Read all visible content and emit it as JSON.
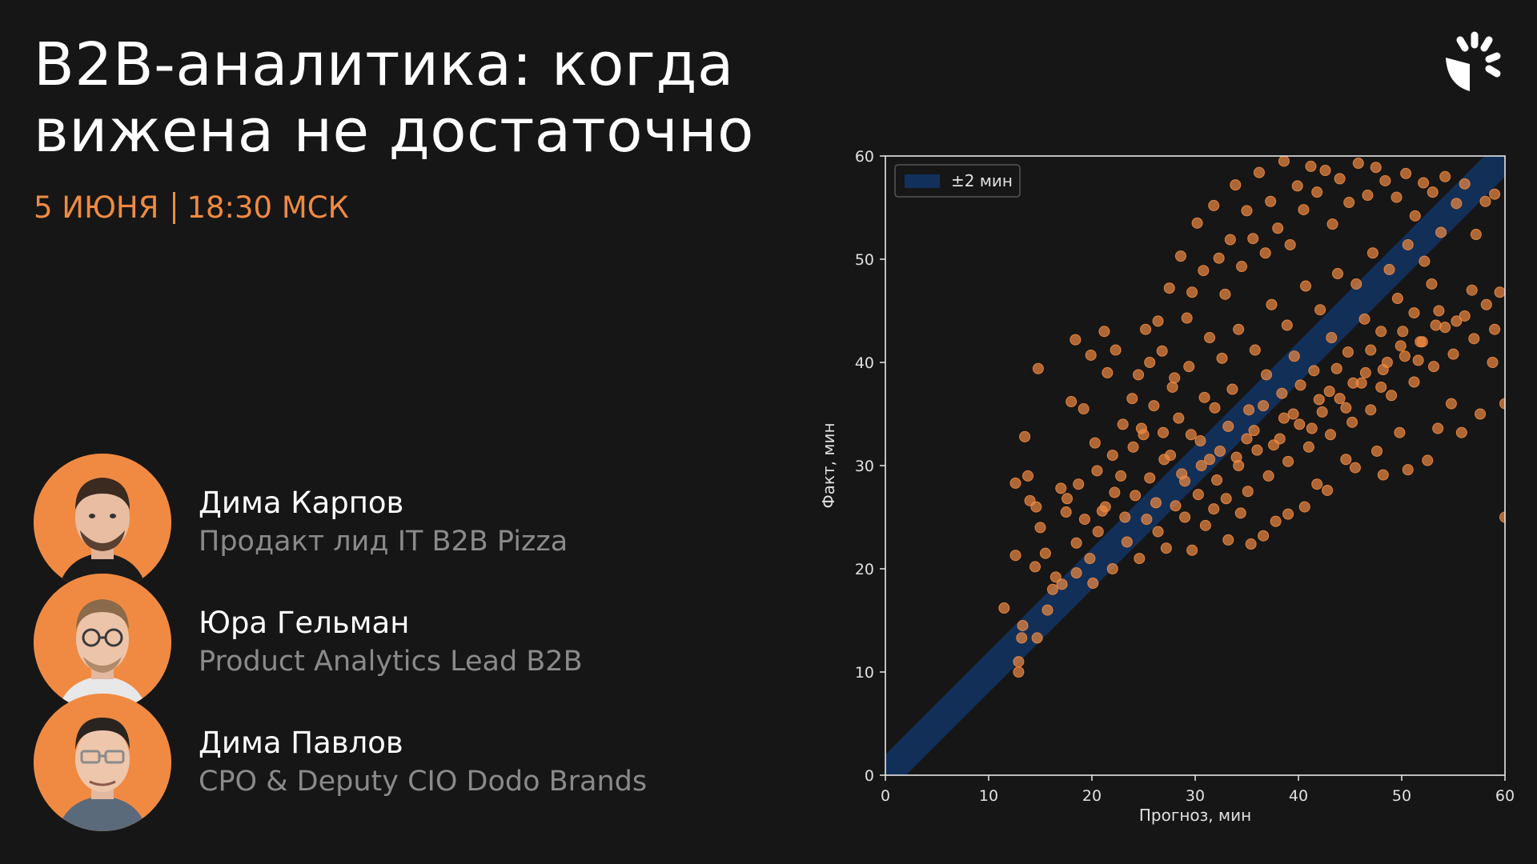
{
  "slide": {
    "title_line1": "B2B-аналитика: когда",
    "title_line2": "вижена не достаточно",
    "date": "5 ИЮНЯ",
    "time": "18:30 МСК"
  },
  "speakers": [
    {
      "name": "Дима Карпов",
      "role": "Продакт лид IT B2B Pizza"
    },
    {
      "name": "Юра Гельман",
      "role": "Product Analytics Lead B2B"
    },
    {
      "name": "Дима Павлов",
      "role": "CPO & Deputy CIO Dodo Brands"
    }
  ],
  "colors": {
    "accent": "#f08a42",
    "background": "#161616",
    "band": "#12305c",
    "muted": "#8a8a8a"
  },
  "chart_data": {
    "type": "scatter",
    "xlabel": "Прогноз, мин",
    "ylabel": "Факт, мин",
    "xlim": [
      0,
      60
    ],
    "ylim": [
      0,
      60
    ],
    "xticks": [
      0,
      10,
      20,
      30,
      40,
      50,
      60
    ],
    "yticks": [
      0,
      10,
      20,
      30,
      40,
      50,
      60
    ],
    "legend": {
      "label": "±2 мин",
      "position": "top-left"
    },
    "band": {
      "half_width": 2,
      "label": "±2 мин"
    },
    "series": [
      {
        "color": "#f08a42",
        "points": [
          [
            11.5,
            16.2
          ],
          [
            12.6,
            21.3
          ],
          [
            12.9,
            10.0
          ],
          [
            12.9,
            11.0
          ],
          [
            13.2,
            13.3
          ],
          [
            13.3,
            14.5
          ],
          [
            14.7,
            13.3
          ],
          [
            14.5,
            20.2
          ],
          [
            15.5,
            21.5
          ],
          [
            15.7,
            16.0
          ],
          [
            16.2,
            18.0
          ],
          [
            16.5,
            19.2
          ],
          [
            17.1,
            18.5
          ],
          [
            12.6,
            28.3
          ],
          [
            13.5,
            32.8
          ],
          [
            13.8,
            29.0
          ],
          [
            14.0,
            26.6
          ],
          [
            14.6,
            26.0
          ],
          [
            15.0,
            24.0
          ],
          [
            14.8,
            39.4
          ],
          [
            17.0,
            27.8
          ],
          [
            17.5,
            25.5
          ],
          [
            17.6,
            26.8
          ],
          [
            18.0,
            36.2
          ],
          [
            18.4,
            42.2
          ],
          [
            18.5,
            22.5
          ],
          [
            18.7,
            28.2
          ],
          [
            19.2,
            35.5
          ],
          [
            19.9,
            40.7
          ],
          [
            20.3,
            32.2
          ],
          [
            21.2,
            43.0
          ],
          [
            22.3,
            41.2
          ],
          [
            21.5,
            39.0
          ],
          [
            20.5,
            29.5
          ],
          [
            21.0,
            25.6
          ],
          [
            22.0,
            31.0
          ],
          [
            23.0,
            34.0
          ],
          [
            23.9,
            36.5
          ],
          [
            24.5,
            38.8
          ],
          [
            25.0,
            33.0
          ],
          [
            25.2,
            43.2
          ],
          [
            25.6,
            40.0
          ],
          [
            26.4,
            44.0
          ],
          [
            26.8,
            41.1
          ],
          [
            27.5,
            47.2
          ],
          [
            28.0,
            38.5
          ],
          [
            28.6,
            50.3
          ],
          [
            29.2,
            44.3
          ],
          [
            29.7,
            46.8
          ],
          [
            30.2,
            53.5
          ],
          [
            30.8,
            48.9
          ],
          [
            31.4,
            42.4
          ],
          [
            31.8,
            55.2
          ],
          [
            32.3,
            50.1
          ],
          [
            32.9,
            46.6
          ],
          [
            33.4,
            51.9
          ],
          [
            33.9,
            57.2
          ],
          [
            34.5,
            49.3
          ],
          [
            35.0,
            54.7
          ],
          [
            35.6,
            52.0
          ],
          [
            36.2,
            58.4
          ],
          [
            36.8,
            50.6
          ],
          [
            37.3,
            55.6
          ],
          [
            38.0,
            53.0
          ],
          [
            38.6,
            59.5
          ],
          [
            39.2,
            51.4
          ],
          [
            39.9,
            57.1
          ],
          [
            40.5,
            54.8
          ],
          [
            41.2,
            59.0
          ],
          [
            41.8,
            56.5
          ],
          [
            42.6,
            58.6
          ],
          [
            43.3,
            53.4
          ],
          [
            44.0,
            57.8
          ],
          [
            44.9,
            55.5
          ],
          [
            45.8,
            59.3
          ],
          [
            46.7,
            56.2
          ],
          [
            47.5,
            58.9
          ],
          [
            48.4,
            57.6
          ],
          [
            49.5,
            56.0
          ],
          [
            50.4,
            58.3
          ],
          [
            51.3,
            54.2
          ],
          [
            52.1,
            57.4
          ],
          [
            53.0,
            56.5
          ],
          [
            54.2,
            58.0
          ],
          [
            55.3,
            55.4
          ],
          [
            56.1,
            57.3
          ],
          [
            57.2,
            52.4
          ],
          [
            58.1,
            55.6
          ],
          [
            59.0,
            56.3
          ],
          [
            22.0,
            20.0
          ],
          [
            23.4,
            22.6
          ],
          [
            24.6,
            21.0
          ],
          [
            25.3,
            24.8
          ],
          [
            26.4,
            23.6
          ],
          [
            27.2,
            22.0
          ],
          [
            28.1,
            26.1
          ],
          [
            29.0,
            25.0
          ],
          [
            30.3,
            27.2
          ],
          [
            31.0,
            24.2
          ],
          [
            32.1,
            28.6
          ],
          [
            33.0,
            26.8
          ],
          [
            34.2,
            30.0
          ],
          [
            35.1,
            27.5
          ],
          [
            36.0,
            31.5
          ],
          [
            37.1,
            29.0
          ],
          [
            38.2,
            32.6
          ],
          [
            39.0,
            30.4
          ],
          [
            40.1,
            34.0
          ],
          [
            41.0,
            31.8
          ],
          [
            42.3,
            35.2
          ],
          [
            43.1,
            33.0
          ],
          [
            44.0,
            36.5
          ],
          [
            45.2,
            34.2
          ],
          [
            46.1,
            38.0
          ],
          [
            47.0,
            35.4
          ],
          [
            48.2,
            39.3
          ],
          [
            49.0,
            36.8
          ],
          [
            50.3,
            40.6
          ],
          [
            51.2,
            38.1
          ],
          [
            52.0,
            42.0
          ],
          [
            53.1,
            39.6
          ],
          [
            54.2,
            43.4
          ],
          [
            55.0,
            40.8
          ],
          [
            56.1,
            44.5
          ],
          [
            57.0,
            42.3
          ],
          [
            58.2,
            45.6
          ],
          [
            59.0,
            43.2
          ],
          [
            59.5,
            46.8
          ],
          [
            60.0,
            36.0
          ],
          [
            60.0,
            25.0
          ],
          [
            29.7,
            21.8
          ],
          [
            33.2,
            22.8
          ],
          [
            35.4,
            22.4
          ],
          [
            37.8,
            24.6
          ],
          [
            40.6,
            26.0
          ],
          [
            42.8,
            27.6
          ],
          [
            45.5,
            29.8
          ],
          [
            47.6,
            31.4
          ],
          [
            49.8,
            33.2
          ],
          [
            50.6,
            29.6
          ],
          [
            53.5,
            33.6
          ],
          [
            55.8,
            33.2
          ],
          [
            57.6,
            35.0
          ],
          [
            58.8,
            40.0
          ],
          [
            54.8,
            36.0
          ],
          [
            52.5,
            30.5
          ],
          [
            48.2,
            29.1
          ],
          [
            44.6,
            30.6
          ],
          [
            41.8,
            28.2
          ],
          [
            39.0,
            25.3
          ],
          [
            36.6,
            23.2
          ],
          [
            34.4,
            25.4
          ],
          [
            31.8,
            25.8
          ],
          [
            29.0,
            28.5
          ],
          [
            27.0,
            30.6
          ],
          [
            25.6,
            28.8
          ],
          [
            24.2,
            27.1
          ],
          [
            23.2,
            25.0
          ],
          [
            22.2,
            27.4
          ],
          [
            21.3,
            26.0
          ],
          [
            20.6,
            23.6
          ],
          [
            19.8,
            21.0
          ],
          [
            19.3,
            24.8
          ],
          [
            18.5,
            19.6
          ],
          [
            20.1,
            18.6
          ],
          [
            26.0,
            35.8
          ],
          [
            27.8,
            37.6
          ],
          [
            29.4,
            39.6
          ],
          [
            30.9,
            36.6
          ],
          [
            32.6,
            40.4
          ],
          [
            34.2,
            43.2
          ],
          [
            35.8,
            41.2
          ],
          [
            37.4,
            45.6
          ],
          [
            38.9,
            43.6
          ],
          [
            40.7,
            47.4
          ],
          [
            42.1,
            45.1
          ],
          [
            43.8,
            48.6
          ],
          [
            45.6,
            47.6
          ],
          [
            47.2,
            50.6
          ],
          [
            48.8,
            49.0
          ],
          [
            50.6,
            51.4
          ],
          [
            52.2,
            49.8
          ],
          [
            53.8,
            52.6
          ],
          [
            24.0,
            31.8
          ],
          [
            26.9,
            33.2
          ],
          [
            28.4,
            34.6
          ],
          [
            30.5,
            32.4
          ],
          [
            31.9,
            35.6
          ],
          [
            33.6,
            37.4
          ],
          [
            35.2,
            35.4
          ],
          [
            36.9,
            38.8
          ],
          [
            38.4,
            37.0
          ],
          [
            39.6,
            40.6
          ],
          [
            41.5,
            39.2
          ],
          [
            43.2,
            42.4
          ],
          [
            44.8,
            41.0
          ],
          [
            46.4,
            44.2
          ],
          [
            48.0,
            43.0
          ],
          [
            49.6,
            46.2
          ],
          [
            51.2,
            44.8
          ],
          [
            52.9,
            47.6
          ],
          [
            27.6,
            31.0
          ],
          [
            29.6,
            33.0
          ],
          [
            31.4,
            30.6
          ],
          [
            33.2,
            33.8
          ],
          [
            35.0,
            32.6
          ],
          [
            36.6,
            35.8
          ],
          [
            38.6,
            34.6
          ],
          [
            40.2,
            37.8
          ],
          [
            42.0,
            36.4
          ],
          [
            43.7,
            39.4
          ],
          [
            45.3,
            38.0
          ],
          [
            47.0,
            41.2
          ],
          [
            48.6,
            40.0
          ],
          [
            50.1,
            43.0
          ],
          [
            51.8,
            42.0
          ],
          [
            53.6,
            45.0
          ],
          [
            55.3,
            44.0
          ],
          [
            56.8,
            47.0
          ],
          [
            22.8,
            29.0
          ],
          [
            24.8,
            33.6
          ],
          [
            26.2,
            26.4
          ],
          [
            28.7,
            29.2
          ],
          [
            30.6,
            30.0
          ],
          [
            32.4,
            31.4
          ],
          [
            34.0,
            30.8
          ],
          [
            35.7,
            33.4
          ],
          [
            37.6,
            32.0
          ],
          [
            39.5,
            35.0
          ],
          [
            41.3,
            33.6
          ],
          [
            43.0,
            37.2
          ],
          [
            44.6,
            35.6
          ],
          [
            46.5,
            39.0
          ],
          [
            48.0,
            37.6
          ],
          [
            49.9,
            41.6
          ],
          [
            51.6,
            40.2
          ],
          [
            53.3,
            43.6
          ]
        ]
      }
    ]
  }
}
